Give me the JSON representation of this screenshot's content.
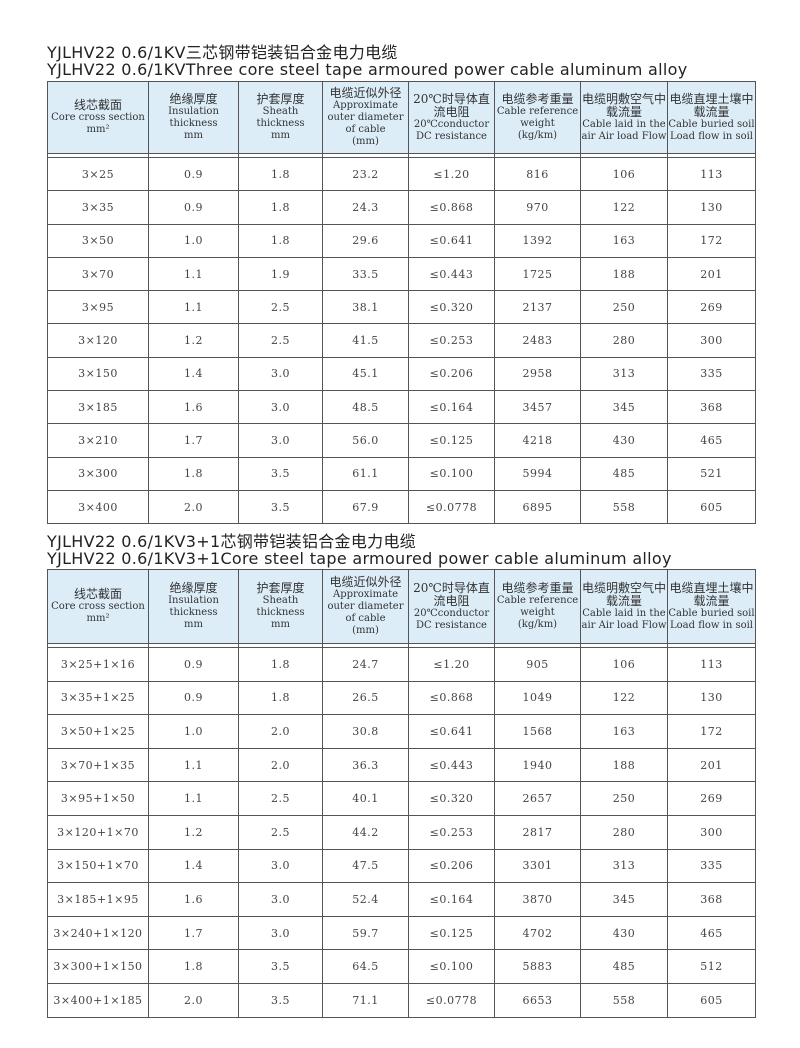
{
  "headers": [
    {
      "zh": "线芯截面",
      "en": "Core cross section",
      "unit": "mm²"
    },
    {
      "zh": "绝缘厚度",
      "en": "Insulation thickness",
      "unit": "mm"
    },
    {
      "zh": "护套厚度",
      "en": "Sheath thickness",
      "unit": "mm"
    },
    {
      "zh": "电缆近似外径",
      "en": "Approximate outer diameter of cable",
      "unit": "(mm)"
    },
    {
      "zh": "20℃时导体直流电阻",
      "en": "20℃conductor DC resistance",
      "unit": ""
    },
    {
      "zh": "电缆参考重量",
      "en": "Cable reference weight",
      "unit": "(kg/km)"
    },
    {
      "zh": "电缆明敷空气中载流量",
      "en": "Cable laid in the air Air load Flow",
      "unit": ""
    },
    {
      "zh": "电缆直埋土壤中载流量",
      "en": "Cable buried soil Load flow in soil",
      "unit": ""
    }
  ],
  "tables": [
    {
      "title_zh": "YJLHV22 0.6/1KV三芯钢带铠装铝合金电力电缆",
      "title_en": "YJLHV22 0.6/1KVThree core steel tape armoured power cable aluminum alloy",
      "rows": [
        [
          "3×25",
          "0.9",
          "1.8",
          "23.2",
          "≤1.20",
          "816",
          "106",
          "113"
        ],
        [
          "3×35",
          "0.9",
          "1.8",
          "24.3",
          "≤0.868",
          "970",
          "122",
          "130"
        ],
        [
          "3×50",
          "1.0",
          "1.8",
          "29.6",
          "≤0.641",
          "1392",
          "163",
          "172"
        ],
        [
          "3×70",
          "1.1",
          "1.9",
          "33.5",
          "≤0.443",
          "1725",
          "188",
          "201"
        ],
        [
          "3×95",
          "1.1",
          "2.5",
          "38.1",
          "≤0.320",
          "2137",
          "250",
          "269"
        ],
        [
          "3×120",
          "1.2",
          "2.5",
          "41.5",
          "≤0.253",
          "2483",
          "280",
          "300"
        ],
        [
          "3×150",
          "1.4",
          "3.0",
          "45.1",
          "≤0.206",
          "2958",
          "313",
          "335"
        ],
        [
          "3×185",
          "1.6",
          "3.0",
          "48.5",
          "≤0.164",
          "3457",
          "345",
          "368"
        ],
        [
          "3×210",
          "1.7",
          "3.0",
          "56.0",
          "≤0.125",
          "4218",
          "430",
          "465"
        ],
        [
          "3×300",
          "1.8",
          "3.5",
          "61.1",
          "≤0.100",
          "5994",
          "485",
          "521"
        ],
        [
          "3×400",
          "2.0",
          "3.5",
          "67.9",
          "≤0.0778",
          "6895",
          "558",
          "605"
        ]
      ]
    },
    {
      "title_zh": "YJLHV22 0.6/1KV3+1芯钢带铠装铝合金电力电缆",
      "title_en": "YJLHV22 0.6/1KV3+1Core steel tape armoured power cable aluminum alloy",
      "rows": [
        [
          "3×25+1×16",
          "0.9",
          "1.8",
          "24.7",
          "≤1.20",
          "905",
          "106",
          "113"
        ],
        [
          "3×35+1×25",
          "0.9",
          "1.8",
          "26.5",
          "≤0.868",
          "1049",
          "122",
          "130"
        ],
        [
          "3×50+1×25",
          "1.0",
          "2.0",
          "30.8",
          "≤0.641",
          "1568",
          "163",
          "172"
        ],
        [
          "3×70+1×35",
          "1.1",
          "2.0",
          "36.3",
          "≤0.443",
          "1940",
          "188",
          "201"
        ],
        [
          "3×95+1×50",
          "1.1",
          "2.5",
          "40.1",
          "≤0.320",
          "2657",
          "250",
          "269"
        ],
        [
          "3×120+1×70",
          "1.2",
          "2.5",
          "44.2",
          "≤0.253",
          "2817",
          "280",
          "300"
        ],
        [
          "3×150+1×70",
          "1.4",
          "3.0",
          "47.5",
          "≤0.206",
          "3301",
          "313",
          "335"
        ],
        [
          "3×185+1×95",
          "1.6",
          "3.0",
          "52.4",
          "≤0.164",
          "3870",
          "345",
          "368"
        ],
        [
          "3×240+1×120",
          "1.7",
          "3.0",
          "59.7",
          "≤0.125",
          "4702",
          "430",
          "465"
        ],
        [
          "3×300+1×150",
          "1.8",
          "3.5",
          "64.5",
          "≤0.100",
          "5883",
          "485",
          "512"
        ],
        [
          "3×400+1×185",
          "2.0",
          "3.5",
          "71.1",
          "≤0.0778",
          "6653",
          "558",
          "605"
        ]
      ]
    }
  ]
}
